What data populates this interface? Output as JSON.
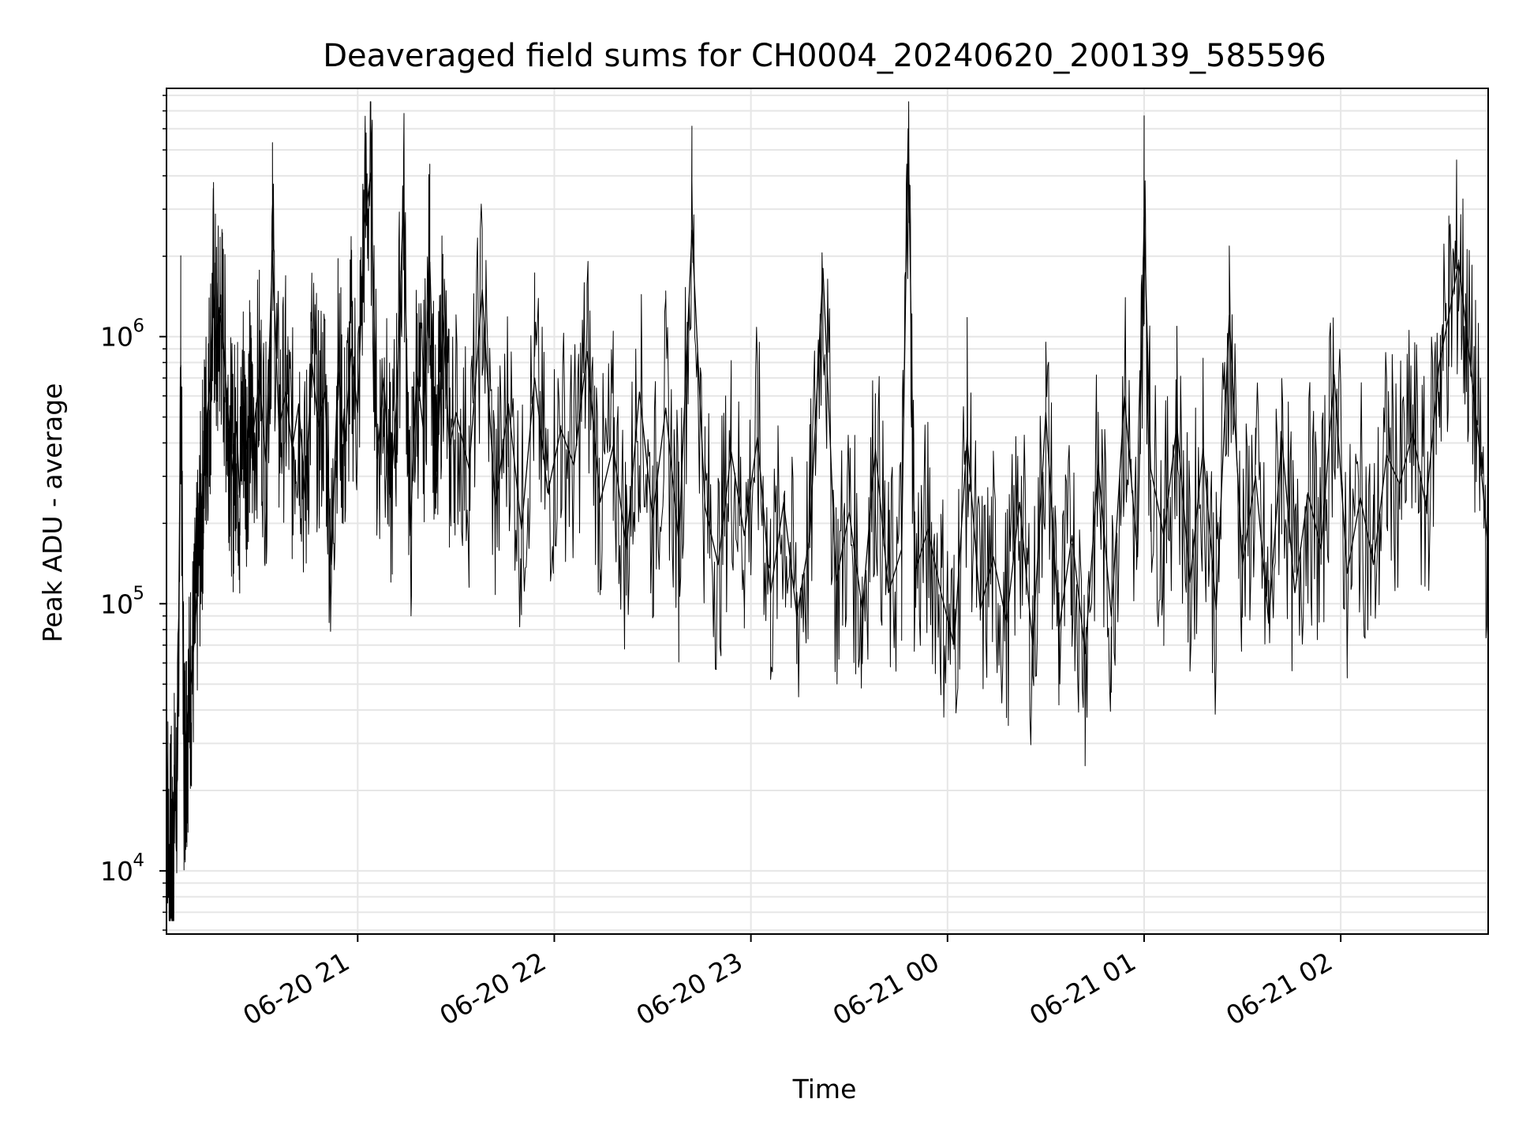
{
  "chart_data": {
    "type": "line",
    "title": "Deaveraged field sums for CH0004_20240620_200139_585596",
    "xlabel": "Time",
    "ylabel": "Peak ADU - average",
    "x_range": [
      "2024-06-20 20:01:39",
      "2024-06-21 02:45:00"
    ],
    "ylim": [
      5800,
      8500000
    ],
    "yscale": "log",
    "grid": true,
    "x_ticks": [
      {
        "value": "2024-06-20 21:00",
        "label": "06-20 21"
      },
      {
        "value": "2024-06-20 22:00",
        "label": "06-20 22"
      },
      {
        "value": "2024-06-20 23:00",
        "label": "06-20 23"
      },
      {
        "value": "2024-06-21 00:00",
        "label": "06-21 00"
      },
      {
        "value": "2024-06-21 01:00",
        "label": "06-21 01"
      },
      {
        "value": "2024-06-21 02:00",
        "label": "06-21 02"
      }
    ],
    "y_ticks": [
      {
        "value": 10000,
        "base": "10",
        "exp": "4"
      },
      {
        "value": 100000,
        "base": "10",
        "exp": "5"
      },
      {
        "value": 1000000,
        "base": "10",
        "exp": "6"
      }
    ],
    "line_color": "#000000",
    "grid_color": "#e6e6e6",
    "series": [
      {
        "x": [
          "2024-06-20 20:01:39",
          "2024-06-20 20:02:30",
          "2024-06-20 20:03:00",
          "2024-06-20 20:03:30",
          "2024-06-20 20:04:00",
          "2024-06-20 20:05:00",
          "2024-06-20 20:06:00",
          "2024-06-20 20:07:00",
          "2024-06-20 20:07:30",
          "2024-06-20 20:08:00",
          "2024-06-20 20:09:00",
          "2024-06-20 20:10:00",
          "2024-06-20 20:11:00",
          "2024-06-20 20:12:00",
          "2024-06-20 20:13:00",
          "2024-06-20 20:14:00",
          "2024-06-20 20:15:00",
          "2024-06-20 20:16:00",
          "2024-06-20 20:17:00",
          "2024-06-20 20:18:00",
          "2024-06-20 20:19:00",
          "2024-06-20 20:20:00",
          "2024-06-20 20:21:00",
          "2024-06-20 20:22:00",
          "2024-06-20 20:23:00",
          "2024-06-20 20:24:00",
          "2024-06-20 20:25:00",
          "2024-06-20 20:26:00",
          "2024-06-20 20:27:00",
          "2024-06-20 20:28:00",
          "2024-06-20 20:30:00",
          "2024-06-20 20:32:00",
          "2024-06-20 20:34:00",
          "2024-06-20 20:36:00",
          "2024-06-20 20:38:00",
          "2024-06-20 20:40:00",
          "2024-06-20 20:42:00",
          "2024-06-20 20:44:00",
          "2024-06-20 20:46:00",
          "2024-06-20 20:48:00",
          "2024-06-20 20:50:00",
          "2024-06-20 20:52:00",
          "2024-06-20 20:54:00",
          "2024-06-20 20:56:00",
          "2024-06-20 20:58:00",
          "2024-06-20 21:00:00",
          "2024-06-20 21:02:00",
          "2024-06-20 21:04:00",
          "2024-06-20 21:06:00",
          "2024-06-20 21:08:00",
          "2024-06-20 21:10:00",
          "2024-06-20 21:12:00",
          "2024-06-20 21:14:00",
          "2024-06-20 21:16:00",
          "2024-06-20 21:18:00",
          "2024-06-20 21:20:00",
          "2024-06-20 21:22:00",
          "2024-06-20 21:24:00",
          "2024-06-20 21:26:00",
          "2024-06-20 21:28:00",
          "2024-06-20 21:30:00",
          "2024-06-20 21:34:00",
          "2024-06-20 21:38:00",
          "2024-06-20 21:42:00",
          "2024-06-20 21:46:00",
          "2024-06-20 21:50:00",
          "2024-06-20 21:54:00",
          "2024-06-20 21:58:00",
          "2024-06-20 22:02:00",
          "2024-06-20 22:06:00",
          "2024-06-20 22:10:00",
          "2024-06-20 22:14:00",
          "2024-06-20 22:18:00",
          "2024-06-20 22:22:00",
          "2024-06-20 22:26:00",
          "2024-06-20 22:30:00",
          "2024-06-20 22:34:00",
          "2024-06-20 22:38:00",
          "2024-06-20 22:42:00",
          "2024-06-20 22:46:00",
          "2024-06-20 22:50:00",
          "2024-06-20 22:54:00",
          "2024-06-20 22:58:00",
          "2024-06-20 23:02:00",
          "2024-06-20 23:06:00",
          "2024-06-20 23:10:00",
          "2024-06-20 23:14:00",
          "2024-06-20 23:18:00",
          "2024-06-20 23:22:00",
          "2024-06-20 23:26:00",
          "2024-06-20 23:30:00",
          "2024-06-20 23:34:00",
          "2024-06-20 23:38:00",
          "2024-06-20 23:42:00",
          "2024-06-20 23:46:00",
          "2024-06-20 23:48:00",
          "2024-06-20 23:50:00",
          "2024-06-20 23:54:00",
          "2024-06-20 23:58:00",
          "2024-06-21 00:02:00",
          "2024-06-21 00:06:00",
          "2024-06-21 00:10:00",
          "2024-06-21 00:14:00",
          "2024-06-21 00:18:00",
          "2024-06-21 00:22:00",
          "2024-06-21 00:26:00",
          "2024-06-21 00:30:00",
          "2024-06-21 00:34:00",
          "2024-06-21 00:38:00",
          "2024-06-21 00:42:00",
          "2024-06-21 00:46:00",
          "2024-06-21 00:50:00",
          "2024-06-21 00:54:00",
          "2024-06-21 00:58:00",
          "2024-06-21 01:00:00",
          "2024-06-21 01:02:00",
          "2024-06-21 01:06:00",
          "2024-06-21 01:10:00",
          "2024-06-21 01:14:00",
          "2024-06-21 01:18:00",
          "2024-06-21 01:22:00",
          "2024-06-21 01:26:00",
          "2024-06-21 01:30:00",
          "2024-06-21 01:34:00",
          "2024-06-21 01:38:00",
          "2024-06-21 01:42:00",
          "2024-06-21 01:46:00",
          "2024-06-21 01:50:00",
          "2024-06-21 01:54:00",
          "2024-06-21 01:58:00",
          "2024-06-21 02:02:00",
          "2024-06-21 02:06:00",
          "2024-06-21 02:10:00",
          "2024-06-21 02:14:00",
          "2024-06-21 02:18:00",
          "2024-06-21 02:22:00",
          "2024-06-21 02:26:00",
          "2024-06-21 02:30:00",
          "2024-06-21 02:33:00",
          "2024-06-21 02:36:00",
          "2024-06-21 02:39:00",
          "2024-06-21 02:42:00",
          "2024-06-21 02:45:00"
        ],
        "y": [
          32000,
          8500,
          14000,
          9000,
          18000,
          22000,
          780000,
          27000,
          30000,
          36000,
          50000,
          70000,
          110000,
          190000,
          320000,
          500000,
          680000,
          1500000,
          870000,
          1200000,
          950000,
          600000,
          420000,
          300000,
          480000,
          250000,
          600000,
          380000,
          520000,
          420000,
          700000,
          340000,
          2100000,
          450000,
          620000,
          380000,
          560000,
          250000,
          800000,
          460000,
          620000,
          140000,
          780000,
          380000,
          900000,
          520000,
          2600000,
          4100000,
          350000,
          700000,
          250000,
          600000,
          3400000,
          180000,
          750000,
          450000,
          1900000,
          260000,
          1200000,
          380000,
          520000,
          320000,
          1500000,
          230000,
          560000,
          190000,
          700000,
          260000,
          450000,
          330000,
          880000,
          240000,
          390000,
          160000,
          620000,
          210000,
          540000,
          170000,
          2500000,
          230000,
          140000,
          370000,
          180000,
          420000,
          110000,
          240000,
          90000,
          180000,
          1800000,
          120000,
          220000,
          95000,
          380000,
          110000,
          160000,
          6000000,
          130000,
          190000,
          110000,
          70000,
          420000,
          95000,
          150000,
          85000,
          240000,
          70000,
          520000,
          80000,
          180000,
          65000,
          330000,
          90000,
          600000,
          150000,
          2800000,
          320000,
          180000,
          470000,
          120000,
          380000,
          95000,
          1200000,
          140000,
          300000,
          85000,
          420000,
          110000,
          260000,
          160000,
          720000,
          130000,
          250000,
          140000,
          360000,
          280000,
          440000,
          230000,
          780000,
          1200000,
          1900000,
          900000,
          420000,
          160000
        ]
      }
    ]
  }
}
